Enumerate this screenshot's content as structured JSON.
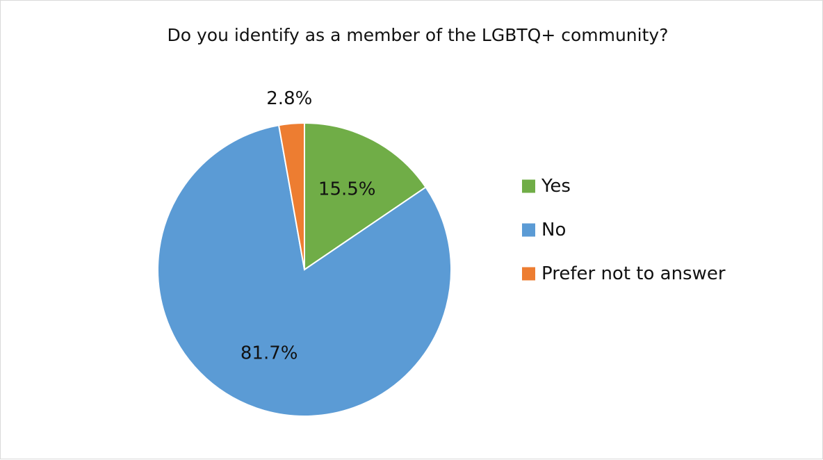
{
  "chart_data": {
    "type": "pie",
    "title": "Do you identify as a member of the LGBTQ+ community?",
    "categories": [
      "Yes",
      "No",
      "Prefer not to answer"
    ],
    "values": [
      15.5,
      81.7,
      2.8
    ],
    "data_labels": [
      "15.5%",
      "81.7%",
      "2.8%"
    ],
    "colors": [
      "#70AD47",
      "#5B9BD5",
      "#ED7D31"
    ],
    "start_angle_deg": 0,
    "direction": "clockwise",
    "legend_placement": "right"
  }
}
